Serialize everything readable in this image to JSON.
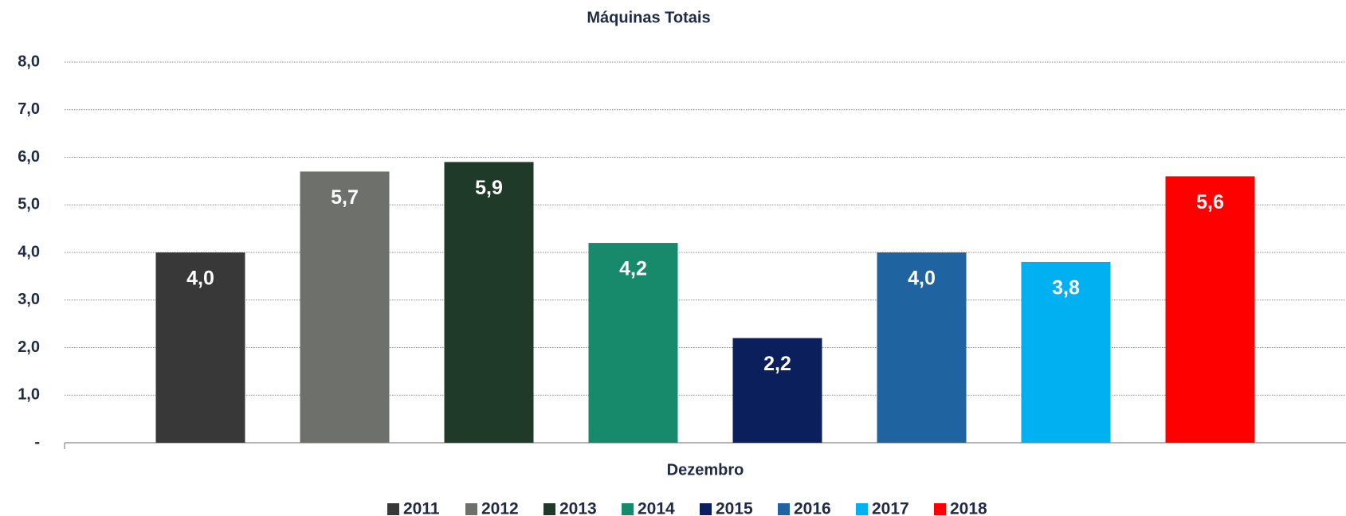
{
  "chart_data": {
    "type": "bar",
    "title": "Máquinas Totais",
    "categories": [
      "Dezembro"
    ],
    "series": [
      {
        "name": "2011",
        "color": "#383838",
        "values": [
          4.0
        ],
        "value_labels": [
          "4,0"
        ]
      },
      {
        "name": "2012",
        "color": "#6e706c",
        "values": [
          5.7
        ],
        "value_labels": [
          "5,7"
        ]
      },
      {
        "name": "2013",
        "color": "#1f3a28",
        "values": [
          5.9
        ],
        "value_labels": [
          "5,9"
        ]
      },
      {
        "name": "2014",
        "color": "#178a6c",
        "values": [
          4.2
        ],
        "value_labels": [
          "4,2"
        ]
      },
      {
        "name": "2015",
        "color": "#0b1f5c",
        "values": [
          2.2
        ],
        "value_labels": [
          "2,2"
        ]
      },
      {
        "name": "2016",
        "color": "#1f64a0",
        "values": [
          4.0
        ],
        "value_labels": [
          "4,0"
        ]
      },
      {
        "name": "2017",
        "color": "#00b0f0",
        "values": [
          3.8
        ],
        "value_labels": [
          "3,8"
        ]
      },
      {
        "name": "2018",
        "color": "#ff0000",
        "values": [
          5.6
        ],
        "value_labels": [
          "5,6"
        ]
      }
    ],
    "ylim": [
      0,
      8
    ],
    "yticks": [
      {
        "value": 0,
        "label": "-"
      },
      {
        "value": 1,
        "label": "1,0"
      },
      {
        "value": 2,
        "label": "2,0"
      },
      {
        "value": 3,
        "label": "3,0"
      },
      {
        "value": 4,
        "label": "4,0"
      },
      {
        "value": 5,
        "label": "5,0"
      },
      {
        "value": 6,
        "label": "6,0"
      },
      {
        "value": 7,
        "label": "7,0"
      },
      {
        "value": 8,
        "label": "8,0"
      }
    ],
    "grid": true,
    "legend": "bottom"
  }
}
